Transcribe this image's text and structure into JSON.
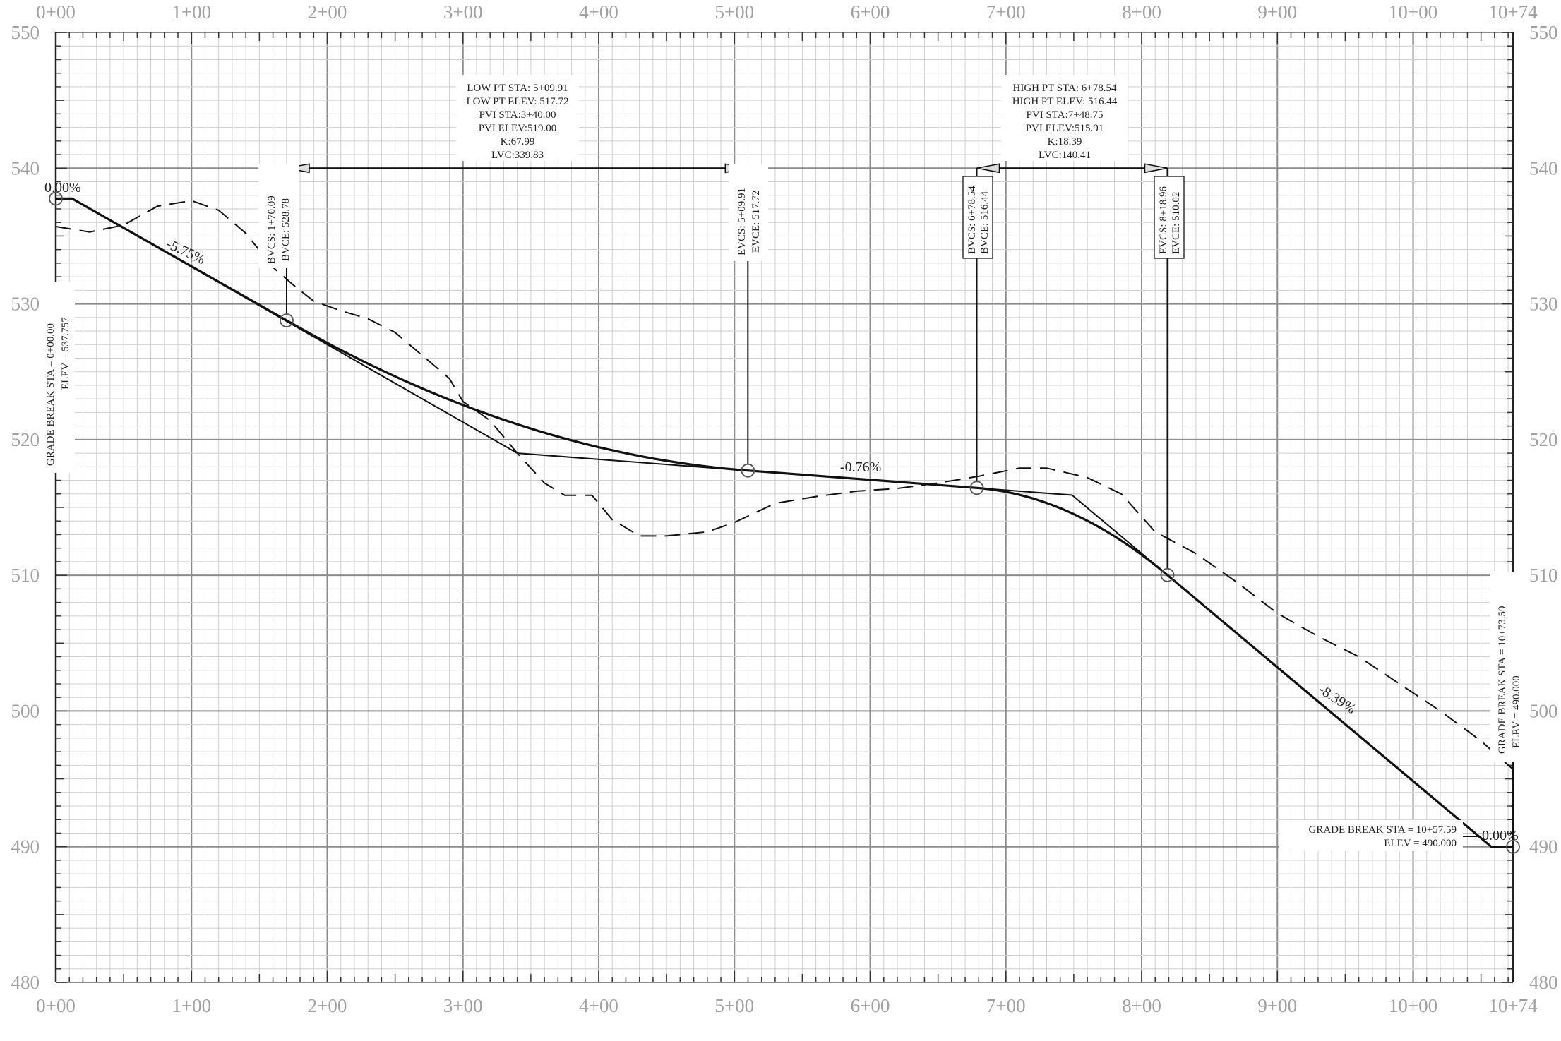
{
  "chart_data": {
    "type": "line",
    "title": "",
    "xlabel": "",
    "ylabel": "",
    "x_range_ft": [
      0,
      1073.59
    ],
    "ylim": [
      480,
      550
    ],
    "grid": true,
    "x_tick_labels": [
      "0+00",
      "1+00",
      "2+00",
      "3+00",
      "4+00",
      "5+00",
      "6+00",
      "7+00",
      "8+00",
      "9+00",
      "10+00",
      "10+74"
    ],
    "x_tick_values_ft": [
      0,
      100,
      200,
      300,
      400,
      500,
      600,
      700,
      800,
      900,
      1000,
      1073.59
    ],
    "y_tick_labels": [
      "480",
      "490",
      "500",
      "510",
      "520",
      "530",
      "540",
      "550"
    ],
    "y_tick_values": [
      480,
      490,
      500,
      510,
      520,
      530,
      540,
      550
    ],
    "series": [
      {
        "style": "dashed",
        "x": [
          0,
          25,
          50,
          75,
          100,
          120,
          140,
          160,
          175,
          190,
          210,
          230,
          250,
          270,
          290,
          300,
          320,
          340,
          360,
          375,
          395,
          410,
          430,
          450,
          480,
          500,
          530,
          560,
          590,
          620,
          650,
          680,
          710,
          730,
          760,
          785,
          810,
          840,
          870,
          900,
          930,
          960,
          990,
          1020,
          1050,
          1073.59
        ],
        "y": [
          535.7,
          535.3,
          535.8,
          537.2,
          537.6,
          536.9,
          535.2,
          532.7,
          531.4,
          530.2,
          529.5,
          528.9,
          527.9,
          526.2,
          524.5,
          522.8,
          521.4,
          519.0,
          516.8,
          515.9,
          515.9,
          514.1,
          512.9,
          512.9,
          513.2,
          513.9,
          515.3,
          515.8,
          516.2,
          516.4,
          516.8,
          517.3,
          517.9,
          517.9,
          517.2,
          516.0,
          513.2,
          511.6,
          509.5,
          507.2,
          505.5,
          504.0,
          502.0,
          500.0,
          497.8,
          495.7
        ]
      },
      {
        "style": "solid-thin",
        "x": [
          0,
          12,
          340,
          748.75,
          1057.59,
          1073.59
        ],
        "y": [
          537.757,
          537.757,
          519.0,
          515.91,
          490.0,
          490.0
        ]
      },
      {
        "style": "solid-thick",
        "x": [
          0,
          12,
          170.09,
          509.91,
          678.54,
          818.96,
          1057.59,
          1073.59
        ],
        "y": [
          537.757,
          537.757,
          528.78,
          517.72,
          516.44,
          510.02,
          490.0,
          490.0
        ]
      }
    ],
    "points": [
      {
        "x": 0,
        "y": 537.757
      },
      {
        "x": 170.09,
        "y": 528.78
      },
      {
        "x": 509.91,
        "y": 517.72
      },
      {
        "x": 678.54,
        "y": 516.44
      },
      {
        "x": 818.96,
        "y": 510.02
      },
      {
        "x": 1073.59,
        "y": 490.0
      }
    ],
    "grade_labels": [
      "0.00%",
      "-5.75%",
      "-0.76%",
      "-8.39%",
      "0.00%"
    ],
    "curves": [
      {
        "info": [
          "LOW PT STA: 5+09.91",
          "LOW PT ELEV: 517.72",
          "PVI STA:3+40.00",
          "PVI ELEV:519.00",
          "K:67.99",
          "LVC:339.83"
        ],
        "bvc": [
          "BVCS: 1+70.09",
          "BVCE: 528.78"
        ],
        "evc": [
          "EVCS: 5+09.91",
          "EVCE: 517.72"
        ]
      },
      {
        "info": [
          "HIGH PT STA: 6+78.54",
          "HIGH PT ELEV: 516.44",
          "PVI STA:7+48.75",
          "PVI ELEV:515.91",
          "K:18.39",
          "LVC:140.41"
        ],
        "bvc": [
          "BVCS: 6+78.54",
          "BVCE: 516.44"
        ],
        "evc": [
          "EVCS: 8+18.96",
          "EVCE: 510.02"
        ]
      }
    ],
    "grade_breaks": [
      {
        "lines": [
          "GRADE BREAK STA = 0+00.00",
          "ELEV = 537.757"
        ]
      },
      {
        "lines": [
          "GRADE BREAK STA = 10+57.59",
          "ELEV = 490.000"
        ]
      },
      {
        "lines": [
          "GRADE BREAK STA = 10+73.59",
          "ELEV = 490.000"
        ]
      }
    ]
  }
}
